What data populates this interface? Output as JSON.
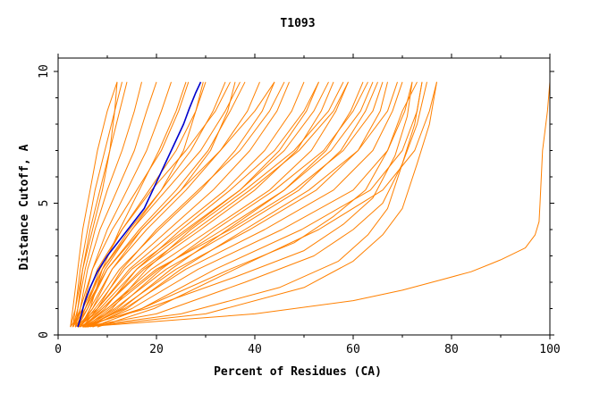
{
  "chart_data": {
    "type": "line",
    "title": "T1093",
    "xlabel": "Percent of Residues (CA)",
    "ylabel": "Distance Cutoff, A",
    "xlim": [
      0,
      100
    ],
    "ylim": [
      0,
      10
    ],
    "xticks": [
      0,
      20,
      40,
      60,
      80,
      100
    ],
    "yticks": [
      0,
      5,
      10
    ],
    "grid": false,
    "colors": {
      "others": "#ff8000",
      "highlight": "#0000cc"
    },
    "series": [
      {
        "x": [
          4.0,
          4.5,
          5.3,
          6.5,
          8.0,
          10.0,
          12.5,
          15.0,
          17.5,
          19.5,
          21.5,
          23.5,
          25.5,
          26.7,
          28.0,
          29.0
        ],
        "y": [
          0.3,
          0.6,
          1.2,
          1.8,
          2.4,
          3.0,
          3.6,
          4.2,
          4.8,
          5.6,
          6.4,
          7.2,
          8.0,
          8.6,
          9.2,
          9.6
        ],
        "highlight": true
      },
      {
        "x": [
          2.5,
          3,
          4,
          5,
          6.5,
          8,
          10,
          12
        ],
        "y": [
          0.3,
          1,
          2.5,
          4,
          5.5,
          7,
          8.5,
          9.6
        ]
      },
      {
        "x": [
          3,
          3.5,
          4.5,
          6,
          7.5,
          9.5,
          11.5,
          13
        ],
        "y": [
          0.3,
          1,
          2.5,
          4,
          5.5,
          7,
          8.5,
          9.6
        ]
      },
      {
        "x": [
          3.5,
          4,
          5,
          6.5,
          8.5,
          10.5,
          12.5,
          14
        ],
        "y": [
          0.3,
          1,
          2.5,
          4,
          5.5,
          7,
          8.5,
          9.6
        ]
      },
      {
        "x": [
          3,
          4,
          5.5,
          7.5,
          10,
          13,
          15.5,
          17
        ],
        "y": [
          0.3,
          1,
          2.5,
          4,
          5.5,
          7,
          8.5,
          9.6
        ]
      },
      {
        "x": [
          3.5,
          4.5,
          6,
          8.5,
          12,
          15.5,
          18,
          20
        ],
        "y": [
          0.3,
          1,
          2.5,
          4,
          5.5,
          7,
          8.5,
          9.6
        ]
      },
      {
        "x": [
          4,
          5,
          7,
          10,
          14,
          18,
          21,
          23
        ],
        "y": [
          0.3,
          1,
          2.5,
          4,
          5.5,
          7,
          8.5,
          9.6
        ]
      },
      {
        "x": [
          3,
          4.5,
          7,
          11,
          16,
          21,
          24.5,
          26.5
        ],
        "y": [
          0.3,
          1,
          2.5,
          4,
          5.5,
          7,
          8.5,
          9.6
        ]
      },
      {
        "x": [
          4,
          5.5,
          8.5,
          13,
          18.5,
          24,
          28,
          30
        ],
        "y": [
          0.3,
          1,
          2.5,
          4,
          5.5,
          7,
          8.5,
          9.6
        ]
      },
      {
        "x": [
          3.5,
          5.5,
          9,
          14.5,
          21,
          27,
          31.5,
          34
        ],
        "y": [
          0.3,
          1,
          2.5,
          4,
          5.5,
          7,
          8.5,
          9.6
        ]
      },
      {
        "x": [
          4,
          6,
          10,
          16.5,
          24,
          30.5,
          35,
          38
        ],
        "y": [
          0.3,
          1,
          2.5,
          4,
          5.5,
          7,
          8.5,
          9.6
        ]
      },
      {
        "x": [
          4.5,
          6.5,
          11,
          18,
          26,
          33,
          38.5,
          41
        ],
        "y": [
          0.3,
          1,
          2.5,
          4,
          5.5,
          7,
          8.5,
          9.6
        ]
      },
      {
        "x": [
          4,
          7,
          12.5,
          20.5,
          29,
          36,
          41.5,
          44
        ],
        "y": [
          0.3,
          1,
          2.5,
          4,
          5.5,
          7,
          8.5,
          9.6
        ]
      },
      {
        "x": [
          4.5,
          7.5,
          13.5,
          22.5,
          31.5,
          39,
          44.5,
          47
        ],
        "y": [
          0.3,
          1,
          2.5,
          4,
          5.5,
          7,
          8.5,
          9.6
        ]
      },
      {
        "x": [
          5,
          8,
          14.5,
          24,
          34,
          42,
          47.5,
          50
        ],
        "y": [
          0.3,
          1,
          2.5,
          4,
          5.5,
          7,
          8.5,
          9.6
        ]
      },
      {
        "x": [
          4,
          8.5,
          16,
          26.5,
          37,
          45,
          50.5,
          53
        ],
        "y": [
          0.3,
          1,
          2.5,
          4,
          5.5,
          7,
          8.5,
          9.6
        ]
      },
      {
        "x": [
          5,
          9,
          17.5,
          29,
          40,
          48.5,
          53.5,
          56
        ],
        "y": [
          0.3,
          1,
          2.5,
          4,
          5.5,
          7,
          8.5,
          9.6
        ]
      },
      {
        "x": [
          4.5,
          10,
          19,
          31,
          43,
          51.5,
          56.5,
          59
        ],
        "y": [
          0.3,
          1,
          2.5,
          4,
          5.5,
          7,
          8.5,
          9.6
        ]
      },
      {
        "x": [
          5.5,
          10.5,
          20.5,
          33.5,
          46,
          54.5,
          59.5,
          62
        ],
        "y": [
          0.3,
          1,
          2.5,
          4,
          5.5,
          7,
          8.5,
          9.6
        ]
      },
      {
        "x": [
          5,
          11.5,
          22,
          36,
          49,
          57.5,
          62.5,
          65
        ],
        "y": [
          0.3,
          1,
          2.5,
          4,
          5.5,
          7,
          8.5,
          9.6
        ]
      },
      {
        "x": [
          6,
          12.5,
          24,
          39,
          52.5,
          61,
          65.5,
          67
        ],
        "y": [
          0.3,
          1,
          2.5,
          4,
          5.5,
          7,
          8.5,
          9.6
        ]
      },
      {
        "x": [
          5.5,
          13.5,
          26,
          42,
          56,
          64,
          68,
          70
        ],
        "y": [
          0.3,
          1,
          2.5,
          4,
          5.5,
          7,
          8.5,
          9.6
        ]
      },
      {
        "x": [
          6,
          15,
          28.5,
          45.5,
          60,
          67,
          70.5,
          72
        ],
        "y": [
          0.3,
          1,
          2.5,
          4,
          5.5,
          7,
          8.5,
          9.6
        ]
      },
      {
        "x": [
          7,
          17,
          32,
          49.5,
          63.5,
          70,
          73,
          74
        ],
        "y": [
          0.3,
          1,
          2.5,
          4,
          5.5,
          7,
          8.5,
          9.6
        ]
      },
      {
        "x": [
          8,
          19.5,
          36,
          53,
          66,
          72.5,
          75.5,
          77
        ],
        "y": [
          0.3,
          1,
          2.5,
          4,
          5.5,
          7,
          8.5,
          9.6
        ]
      },
      {
        "x": [
          4.5,
          7,
          11,
          17,
          25,
          33,
          40,
          44
        ],
        "y": [
          0.3,
          1,
          2.5,
          4,
          5.5,
          7,
          8.5,
          9.6
        ]
      },
      {
        "x": [
          5,
          8,
          13,
          20,
          28.5,
          37,
          43,
          46
        ],
        "y": [
          0.3,
          1,
          2.5,
          4,
          5.5,
          7,
          8.5,
          9.6
        ]
      },
      {
        "x": [
          3.5,
          6,
          9.5,
          15,
          22,
          29,
          34,
          37
        ],
        "y": [
          0.3,
          1,
          2.5,
          4,
          5.5,
          7,
          8.5,
          9.6
        ]
      },
      {
        "x": [
          6,
          11,
          18,
          27,
          38,
          48,
          55,
          58
        ],
        "y": [
          0.3,
          1,
          2.5,
          4,
          5.5,
          7,
          8.5,
          9.6
        ]
      },
      {
        "x": [
          5.5,
          12,
          21,
          32,
          44,
          54,
          60,
          63
        ],
        "y": [
          0.3,
          1,
          2.5,
          4,
          5.5,
          7,
          8.5,
          9.6
        ]
      },
      {
        "x": [
          3,
          5,
          8,
          13,
          19,
          26,
          32,
          35
        ],
        "y": [
          0.3,
          1,
          2.5,
          4,
          5.5,
          7,
          8.5,
          9.6
        ]
      },
      {
        "x": [
          5,
          9.5,
          16,
          25,
          35,
          44,
          50,
          53
        ],
        "y": [
          0.3,
          1,
          2.5,
          4,
          5.5,
          7,
          8.5,
          9.6
        ]
      },
      {
        "x": [
          4.5,
          6.5,
          9,
          12.5,
          16.5,
          20.5,
          24,
          26
        ],
        "y": [
          0.3,
          1,
          2.5,
          4,
          5.5,
          7,
          8.5,
          9.6
        ]
      },
      {
        "x": [
          6.5,
          14,
          25,
          38,
          51,
          61,
          67,
          69
        ],
        "y": [
          0.3,
          1,
          2.5,
          4,
          5.5,
          7,
          8.5,
          9.6
        ]
      },
      {
        "x": [
          5,
          10,
          20,
          35,
          48,
          58,
          64,
          66
        ],
        "y": [
          0.3,
          1,
          2.5,
          4,
          5.5,
          7,
          8.5,
          9.6
        ]
      },
      {
        "x": [
          5,
          17,
          35,
          48,
          56,
          62.5,
          67,
          70,
          73
        ],
        "y": [
          0.3,
          1,
          2.5,
          3.5,
          4.5,
          5.5,
          7,
          8.5,
          9.6
        ]
      },
      {
        "x": [
          5,
          20,
          38,
          52,
          60,
          66,
          70,
          72.5,
          74
        ],
        "y": [
          0.3,
          0.8,
          2.0,
          3.0,
          4.0,
          5.0,
          6.5,
          8.0,
          9.6
        ]
      },
      {
        "x": [
          5,
          25,
          45,
          57,
          63,
          67,
          70,
          73,
          75
        ],
        "y": [
          0.3,
          0.8,
          1.8,
          2.8,
          3.8,
          4.8,
          6.5,
          8.0,
          9.6
        ]
      },
      {
        "x": [
          4,
          18,
          36,
          50,
          58,
          64,
          68.5,
          71,
          72
        ],
        "y": [
          0.3,
          1.0,
          2.2,
          3.2,
          4.2,
          5.2,
          6.8,
          8.3,
          9.6
        ]
      },
      {
        "x": [
          5.5,
          30,
          50,
          60,
          66,
          70,
          73,
          75.5,
          77
        ],
        "y": [
          0.3,
          0.8,
          1.8,
          2.8,
          3.8,
          4.8,
          6.5,
          8.0,
          9.6
        ]
      },
      {
        "x": [
          5,
          40,
          60,
          70,
          78,
          84,
          88,
          90
        ],
        "y": [
          0.3,
          0.8,
          1.3,
          1.7,
          2.1,
          2.4,
          2.7,
          2.85
        ]
      },
      {
        "x": [
          90,
          95,
          97,
          97.8,
          98,
          98.5,
          99.5,
          100
        ],
        "y": [
          2.85,
          3.3,
          3.8,
          4.3,
          5.0,
          7.0,
          8.5,
          9.6
        ]
      },
      {
        "x": [
          2.5,
          3.5,
          5,
          7,
          9,
          10.5,
          11.5,
          12
        ],
        "y": [
          0.3,
          1,
          2.5,
          4,
          5.5,
          7,
          8.5,
          9.6
        ]
      },
      {
        "x": [
          2.5,
          5,
          9,
          15,
          21,
          25.5,
          28,
          29.5
        ],
        "y": [
          0.3,
          1,
          2.5,
          4,
          5.5,
          7,
          8.5,
          9.6
        ]
      },
      {
        "x": [
          3,
          5.5,
          10,
          17,
          25,
          31,
          34.5,
          36
        ],
        "y": [
          0.3,
          1,
          2.5,
          4,
          5.5,
          7,
          8.5,
          9.6
        ]
      },
      {
        "x": [
          4,
          9,
          17,
          28,
          39,
          49,
          56,
          59
        ],
        "y": [
          0.3,
          1,
          2.5,
          4,
          5.5,
          7,
          8.5,
          9.6
        ]
      },
      {
        "x": [
          3.5,
          8,
          15,
          26,
          37,
          46,
          52,
          55
        ],
        "y": [
          0.3,
          1,
          2.5,
          4,
          5.5,
          7,
          8.5,
          9.6
        ]
      },
      {
        "x": [
          6,
          13,
          23,
          34.5,
          46,
          55.5,
          61.5,
          64
        ],
        "y": [
          0.3,
          1,
          2.5,
          4,
          5.5,
          7,
          8.5,
          9.6
        ]
      }
    ]
  }
}
